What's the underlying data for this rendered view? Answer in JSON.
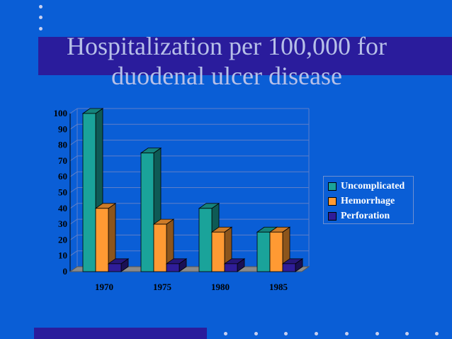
{
  "slide": {
    "title_line1": "Hospitalization per 100,000 for",
    "title_line2": "duodenal ulcer disease"
  },
  "chart_data": {
    "type": "bar",
    "categories": [
      "1970",
      "1975",
      "1980",
      "1985"
    ],
    "series": [
      {
        "name": "Uncomplicated",
        "values": [
          100,
          75,
          40,
          25
        ],
        "color": "#1aa39a"
      },
      {
        "name": "Hemorrhage",
        "values": [
          40,
          30,
          25,
          25
        ],
        "color": "#ff9a33"
      },
      {
        "name": "Perforation",
        "values": [
          5,
          5,
          5,
          5
        ],
        "color": "#2f1d99"
      }
    ],
    "y_ticks": [
      "0",
      "10",
      "20",
      "30",
      "40",
      "50",
      "60",
      "70",
      "80",
      "90",
      "100"
    ],
    "ylim": [
      0,
      100
    ],
    "grid": true,
    "legend_position": "right",
    "style": "3d"
  },
  "colors": {
    "background": "#0a5ed6",
    "band": "#2a1c9c",
    "title_text": "#b7c0e8"
  }
}
